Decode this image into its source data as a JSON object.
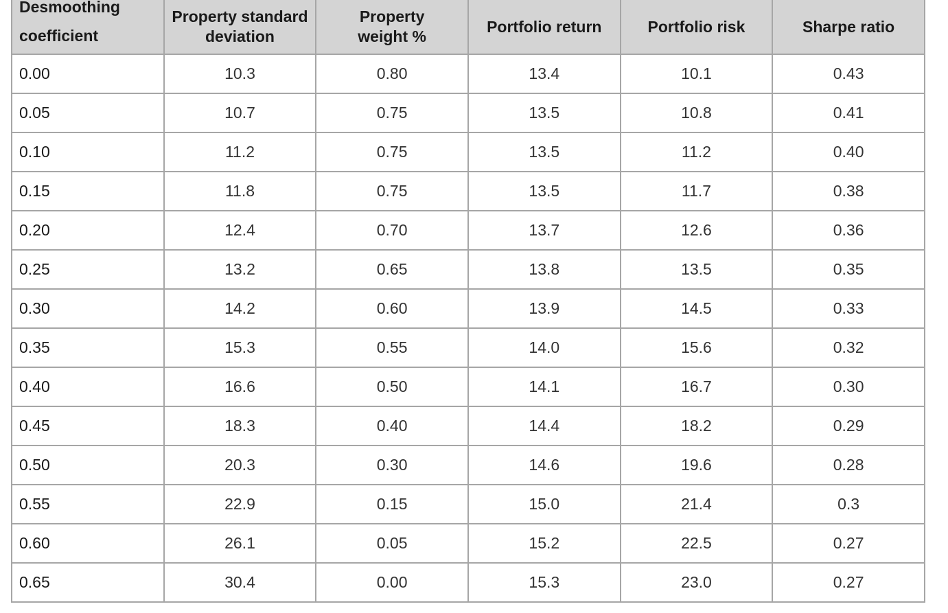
{
  "table": {
    "headers": [
      [
        "Desmoothing",
        "coefficient"
      ],
      [
        "Property standard",
        "deviation"
      ],
      [
        "Property",
        "weight %"
      ],
      [
        "Portfolio return"
      ],
      [
        "Portfolio risk"
      ],
      [
        "Sharpe ratio"
      ]
    ],
    "rows": [
      [
        "0.00",
        "10.3",
        "0.80",
        "13.4",
        "10.1",
        "0.43"
      ],
      [
        "0.05",
        "10.7",
        "0.75",
        "13.5",
        "10.8",
        "0.41"
      ],
      [
        "0.10",
        "11.2",
        "0.75",
        "13.5",
        "11.2",
        "0.40"
      ],
      [
        "0.15",
        "11.8",
        "0.75",
        "13.5",
        "11.7",
        "0.38"
      ],
      [
        "0.20",
        "12.4",
        "0.70",
        "13.7",
        "12.6",
        "0.36"
      ],
      [
        "0.25",
        "13.2",
        "0.65",
        "13.8",
        "13.5",
        "0.35"
      ],
      [
        "0.30",
        "14.2",
        "0.60",
        "13.9",
        "14.5",
        "0.33"
      ],
      [
        "0.35",
        "15.3",
        "0.55",
        "14.0",
        "15.6",
        "0.32"
      ],
      [
        "0.40",
        "16.6",
        "0.50",
        "14.1",
        "16.7",
        "0.30"
      ],
      [
        "0.45",
        "18.3",
        "0.40",
        "14.4",
        "18.2",
        "0.29"
      ],
      [
        "0.50",
        "20.3",
        "0.30",
        "14.6",
        "19.6",
        "0.28"
      ],
      [
        "0.55",
        "22.9",
        "0.15",
        "15.0",
        "21.4",
        "0.3"
      ],
      [
        "0.60",
        "26.1",
        "0.05",
        "15.2",
        "22.5",
        "0.27"
      ],
      [
        "0.65",
        "30.4",
        "0.00",
        "15.3",
        "23.0",
        "0.27"
      ]
    ]
  },
  "colors": {
    "header_background": "#d4d4d4",
    "border": "#a6a6a6",
    "text": "#333333"
  }
}
